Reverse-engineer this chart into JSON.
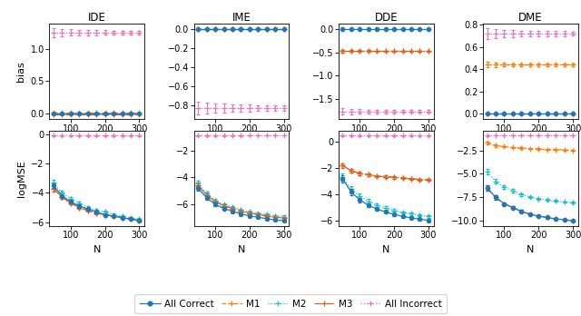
{
  "N_values": [
    50,
    75,
    100,
    125,
    150,
    175,
    200,
    225,
    250,
    275,
    300
  ],
  "colors": {
    "All Correct": "#1f77b4",
    "M1": "#ff7f0e",
    "M2": "#17becf",
    "M3": "#d6622b",
    "All Incorrect": "#e377c2"
  },
  "subplot_titles": [
    "IDE",
    "IME",
    "DDE",
    "DME"
  ],
  "row_labels": [
    "bias",
    "logMSE"
  ],
  "xlabel": "N",
  "bias": {
    "IDE": {
      "All Correct": {
        "mean": [
          0.0,
          0.0,
          0.0,
          0.0,
          0.0,
          0.0,
          0.0,
          0.0,
          0.0,
          0.0,
          0.0
        ],
        "err": [
          0.008,
          0.007,
          0.006,
          0.005,
          0.005,
          0.004,
          0.004,
          0.004,
          0.003,
          0.003,
          0.003
        ]
      },
      "M1": {
        "mean": [
          0.01,
          0.01,
          0.01,
          0.01,
          0.01,
          0.01,
          0.01,
          0.01,
          0.01,
          0.01,
          0.01
        ],
        "err": [
          0.01,
          0.008,
          0.007,
          0.006,
          0.006,
          0.005,
          0.005,
          0.005,
          0.004,
          0.004,
          0.004
        ]
      },
      "M2": {
        "mean": [
          0.005,
          0.005,
          0.005,
          0.005,
          0.005,
          0.005,
          0.005,
          0.005,
          0.005,
          0.005,
          0.005
        ],
        "err": [
          0.01,
          0.008,
          0.007,
          0.006,
          0.006,
          0.005,
          0.005,
          0.005,
          0.004,
          0.004,
          0.004
        ]
      },
      "M3": {
        "mean": [
          -0.01,
          -0.01,
          -0.01,
          -0.01,
          -0.01,
          -0.01,
          -0.01,
          -0.01,
          -0.01,
          -0.01,
          -0.01
        ],
        "err": [
          0.01,
          0.008,
          0.007,
          0.006,
          0.006,
          0.005,
          0.005,
          0.005,
          0.004,
          0.004,
          0.004
        ]
      },
      "All Incorrect": {
        "mean": [
          1.25,
          1.25,
          1.25,
          1.25,
          1.25,
          1.25,
          1.25,
          1.25,
          1.25,
          1.25,
          1.25
        ],
        "err": [
          0.07,
          0.055,
          0.048,
          0.043,
          0.039,
          0.037,
          0.035,
          0.033,
          0.032,
          0.03,
          0.029
        ]
      }
    },
    "IME": {
      "All Correct": {
        "mean": [
          0.0,
          0.0,
          0.0,
          0.0,
          0.0,
          0.0,
          0.0,
          0.0,
          0.0,
          0.0,
          0.0
        ],
        "err": [
          0.008,
          0.007,
          0.006,
          0.005,
          0.005,
          0.004,
          0.004,
          0.004,
          0.003,
          0.003,
          0.003
        ]
      },
      "M1": {
        "mean": [
          0.0,
          0.0,
          0.0,
          0.0,
          0.0,
          0.0,
          0.0,
          0.0,
          0.0,
          0.0,
          0.0
        ],
        "err": [
          0.008,
          0.007,
          0.006,
          0.005,
          0.005,
          0.004,
          0.004,
          0.004,
          0.003,
          0.003,
          0.003
        ]
      },
      "M2": {
        "mean": [
          0.0,
          0.0,
          0.0,
          0.0,
          0.0,
          0.0,
          0.0,
          0.0,
          0.0,
          0.0,
          0.0
        ],
        "err": [
          0.008,
          0.007,
          0.006,
          0.005,
          0.005,
          0.004,
          0.004,
          0.004,
          0.003,
          0.003,
          0.003
        ]
      },
      "M3": {
        "mean": [
          0.0,
          0.0,
          0.0,
          0.0,
          0.0,
          0.0,
          0.0,
          0.0,
          0.0,
          0.0,
          0.0
        ],
        "err": [
          0.008,
          0.007,
          0.006,
          0.005,
          0.005,
          0.004,
          0.004,
          0.004,
          0.003,
          0.003,
          0.003
        ]
      },
      "All Incorrect": {
        "mean": [
          -0.83,
          -0.83,
          -0.83,
          -0.83,
          -0.83,
          -0.83,
          -0.83,
          -0.83,
          -0.83,
          -0.83,
          -0.83
        ],
        "err": [
          0.07,
          0.055,
          0.048,
          0.043,
          0.039,
          0.037,
          0.035,
          0.033,
          0.032,
          0.03,
          0.029
        ]
      }
    },
    "DDE": {
      "All Correct": {
        "mean": [
          0.0,
          0.0,
          0.0,
          0.0,
          0.0,
          0.0,
          0.0,
          0.0,
          0.0,
          0.0,
          0.0
        ],
        "err": [
          0.025,
          0.02,
          0.017,
          0.015,
          0.014,
          0.013,
          0.012,
          0.011,
          0.011,
          0.01,
          0.01
        ]
      },
      "M1": {
        "mean": [
          -0.47,
          -0.47,
          -0.47,
          -0.47,
          -0.47,
          -0.47,
          -0.47,
          -0.47,
          -0.47,
          -0.47,
          -0.47
        ],
        "err": [
          0.025,
          0.02,
          0.017,
          0.015,
          0.014,
          0.013,
          0.012,
          0.011,
          0.011,
          0.01,
          0.01
        ]
      },
      "M2": {
        "mean": [
          0.0,
          0.0,
          0.0,
          0.0,
          0.0,
          0.0,
          0.0,
          0.0,
          0.0,
          0.0,
          0.0
        ],
        "err": [
          0.025,
          0.02,
          0.017,
          0.015,
          0.014,
          0.013,
          0.012,
          0.011,
          0.011,
          0.01,
          0.01
        ]
      },
      "M3": {
        "mean": [
          -0.47,
          -0.47,
          -0.47,
          -0.47,
          -0.47,
          -0.47,
          -0.47,
          -0.47,
          -0.47,
          -0.47,
          -0.47
        ],
        "err": [
          0.025,
          0.02,
          0.017,
          0.015,
          0.014,
          0.013,
          0.012,
          0.011,
          0.011,
          0.01,
          0.01
        ]
      },
      "All Incorrect": {
        "mean": [
          -1.77,
          -1.77,
          -1.77,
          -1.77,
          -1.77,
          -1.77,
          -1.77,
          -1.77,
          -1.77,
          -1.77,
          -1.77
        ],
        "err": [
          0.07,
          0.055,
          0.048,
          0.043,
          0.039,
          0.037,
          0.035,
          0.033,
          0.032,
          0.03,
          0.029
        ]
      }
    },
    "DME": {
      "All Correct": {
        "mean": [
          0.0,
          0.0,
          0.0,
          0.0,
          0.0,
          0.0,
          0.0,
          0.0,
          0.0,
          0.0,
          0.0
        ],
        "err": [
          0.008,
          0.007,
          0.006,
          0.005,
          0.005,
          0.004,
          0.004,
          0.004,
          0.003,
          0.003,
          0.003
        ]
      },
      "M1": {
        "mean": [
          0.44,
          0.44,
          0.44,
          0.44,
          0.44,
          0.44,
          0.44,
          0.44,
          0.44,
          0.44,
          0.44
        ],
        "err": [
          0.025,
          0.02,
          0.017,
          0.015,
          0.014,
          0.013,
          0.012,
          0.011,
          0.011,
          0.01,
          0.01
        ]
      },
      "M2": {
        "mean": [
          0.005,
          0.005,
          0.005,
          0.005,
          0.005,
          0.005,
          0.005,
          0.005,
          0.005,
          0.005,
          0.005
        ],
        "err": [
          0.008,
          0.007,
          0.006,
          0.005,
          0.005,
          0.004,
          0.004,
          0.004,
          0.003,
          0.003,
          0.003
        ]
      },
      "M3": {
        "mean": [
          0.005,
          0.005,
          0.005,
          0.005,
          0.005,
          0.005,
          0.005,
          0.005,
          0.005,
          0.005,
          0.005
        ],
        "err": [
          0.008,
          0.007,
          0.006,
          0.005,
          0.005,
          0.004,
          0.004,
          0.004,
          0.003,
          0.003,
          0.003
        ]
      },
      "All Incorrect": {
        "mean": [
          0.72,
          0.72,
          0.72,
          0.72,
          0.72,
          0.72,
          0.72,
          0.72,
          0.72,
          0.72,
          0.72
        ],
        "err": [
          0.05,
          0.04,
          0.035,
          0.031,
          0.028,
          0.026,
          0.025,
          0.023,
          0.022,
          0.021,
          0.02
        ]
      }
    }
  },
  "logMSE": {
    "IDE": {
      "All Correct": {
        "mean": [
          -3.5,
          -4.2,
          -4.6,
          -4.9,
          -5.1,
          -5.3,
          -5.5,
          -5.6,
          -5.7,
          -5.8,
          -5.9
        ],
        "err": [
          0.18,
          0.13,
          0.11,
          0.1,
          0.09,
          0.08,
          0.08,
          0.07,
          0.07,
          0.07,
          0.07
        ]
      },
      "M1": {
        "mean": [
          -3.7,
          -4.3,
          -4.7,
          -5.0,
          -5.2,
          -5.4,
          -5.5,
          -5.6,
          -5.7,
          -5.8,
          -5.9
        ],
        "err": [
          0.18,
          0.13,
          0.11,
          0.1,
          0.09,
          0.08,
          0.08,
          0.07,
          0.07,
          0.07,
          0.07
        ]
      },
      "M2": {
        "mean": [
          -3.3,
          -4.0,
          -4.4,
          -4.7,
          -5.0,
          -5.2,
          -5.3,
          -5.5,
          -5.6,
          -5.7,
          -5.8
        ],
        "err": [
          0.18,
          0.13,
          0.11,
          0.1,
          0.09,
          0.08,
          0.08,
          0.07,
          0.07,
          0.07,
          0.07
        ]
      },
      "M3": {
        "mean": [
          -3.7,
          -4.3,
          -4.7,
          -5.0,
          -5.2,
          -5.4,
          -5.5,
          -5.6,
          -5.7,
          -5.8,
          -5.9
        ],
        "err": [
          0.18,
          0.13,
          0.11,
          0.1,
          0.09,
          0.08,
          0.08,
          0.07,
          0.07,
          0.07,
          0.07
        ]
      },
      "All Incorrect": {
        "mean": [
          -0.05,
          -0.05,
          -0.05,
          -0.05,
          -0.05,
          -0.05,
          -0.05,
          -0.05,
          -0.05,
          -0.05,
          -0.05
        ],
        "err": [
          0.04,
          0.03,
          0.03,
          0.03,
          0.03,
          0.03,
          0.02,
          0.02,
          0.02,
          0.02,
          0.02
        ]
      }
    },
    "IME": {
      "All Correct": {
        "mean": [
          -4.8,
          -5.5,
          -6.0,
          -6.3,
          -6.5,
          -6.7,
          -6.85,
          -6.95,
          -7.05,
          -7.15,
          -7.2
        ],
        "err": [
          0.18,
          0.13,
          0.11,
          0.1,
          0.09,
          0.08,
          0.08,
          0.07,
          0.07,
          0.07,
          0.07
        ]
      },
      "M1": {
        "mean": [
          -4.6,
          -5.3,
          -5.8,
          -6.1,
          -6.3,
          -6.5,
          -6.65,
          -6.75,
          -6.85,
          -6.95,
          -7.0
        ],
        "err": [
          0.18,
          0.13,
          0.11,
          0.1,
          0.09,
          0.08,
          0.08,
          0.07,
          0.07,
          0.07,
          0.07
        ]
      },
      "M2": {
        "mean": [
          -4.4,
          -5.2,
          -5.7,
          -6.0,
          -6.2,
          -6.4,
          -6.55,
          -6.65,
          -6.75,
          -6.85,
          -6.9
        ],
        "err": [
          0.18,
          0.13,
          0.11,
          0.1,
          0.09,
          0.08,
          0.08,
          0.07,
          0.07,
          0.07,
          0.07
        ]
      },
      "M3": {
        "mean": [
          -4.6,
          -5.3,
          -5.8,
          -6.1,
          -6.3,
          -6.5,
          -6.65,
          -6.75,
          -6.85,
          -6.95,
          -7.0
        ],
        "err": [
          0.18,
          0.13,
          0.11,
          0.1,
          0.09,
          0.08,
          0.08,
          0.07,
          0.07,
          0.07,
          0.07
        ]
      },
      "All Incorrect": {
        "mean": [
          -0.9,
          -0.9,
          -0.9,
          -0.9,
          -0.9,
          -0.9,
          -0.9,
          -0.9,
          -0.9,
          -0.9,
          -0.9
        ],
        "err": [
          0.04,
          0.03,
          0.03,
          0.03,
          0.03,
          0.03,
          0.02,
          0.02,
          0.02,
          0.02,
          0.02
        ]
      }
    },
    "DDE": {
      "All Correct": {
        "mean": [
          -2.8,
          -3.8,
          -4.4,
          -4.8,
          -5.1,
          -5.3,
          -5.5,
          -5.65,
          -5.75,
          -5.85,
          -5.95
        ],
        "err": [
          0.28,
          0.22,
          0.18,
          0.16,
          0.14,
          0.12,
          0.11,
          0.1,
          0.1,
          0.09,
          0.09
        ]
      },
      "M1": {
        "mean": [
          -1.8,
          -2.2,
          -2.4,
          -2.5,
          -2.6,
          -2.65,
          -2.7,
          -2.75,
          -2.8,
          -2.85,
          -2.9
        ],
        "err": [
          0.18,
          0.13,
          0.11,
          0.1,
          0.09,
          0.08,
          0.08,
          0.07,
          0.07,
          0.07,
          0.07
        ]
      },
      "M2": {
        "mean": [
          -2.7,
          -3.6,
          -4.1,
          -4.5,
          -4.8,
          -5.0,
          -5.2,
          -5.35,
          -5.45,
          -5.55,
          -5.65
        ],
        "err": [
          0.28,
          0.22,
          0.18,
          0.16,
          0.14,
          0.12,
          0.11,
          0.1,
          0.1,
          0.09,
          0.09
        ]
      },
      "M3": {
        "mean": [
          -1.8,
          -2.2,
          -2.4,
          -2.5,
          -2.6,
          -2.65,
          -2.7,
          -2.75,
          -2.8,
          -2.85,
          -2.9
        ],
        "err": [
          0.18,
          0.13,
          0.11,
          0.1,
          0.09,
          0.08,
          0.08,
          0.07,
          0.07,
          0.07,
          0.07
        ]
      },
      "All Incorrect": {
        "mean": [
          0.45,
          0.45,
          0.45,
          0.45,
          0.45,
          0.45,
          0.45,
          0.45,
          0.45,
          0.45,
          0.45
        ],
        "err": [
          0.06,
          0.05,
          0.04,
          0.04,
          0.04,
          0.04,
          0.04,
          0.04,
          0.04,
          0.04,
          0.04
        ]
      }
    },
    "DME": {
      "All Correct": {
        "mean": [
          -6.5,
          -7.5,
          -8.2,
          -8.6,
          -9.0,
          -9.3,
          -9.5,
          -9.65,
          -9.8,
          -9.9,
          -10.0
        ],
        "err": [
          0.28,
          0.22,
          0.18,
          0.16,
          0.14,
          0.12,
          0.11,
          0.1,
          0.1,
          0.09,
          0.09
        ]
      },
      "M1": {
        "mean": [
          -1.7,
          -2.0,
          -2.1,
          -2.2,
          -2.25,
          -2.3,
          -2.35,
          -2.4,
          -2.4,
          -2.45,
          -2.5
        ],
        "err": [
          0.15,
          0.11,
          0.09,
          0.08,
          0.07,
          0.07,
          0.06,
          0.06,
          0.06,
          0.05,
          0.05
        ]
      },
      "M2": {
        "mean": [
          -4.8,
          -5.8,
          -6.4,
          -6.8,
          -7.2,
          -7.45,
          -7.65,
          -7.8,
          -7.9,
          -8.0,
          -8.05
        ],
        "err": [
          0.28,
          0.22,
          0.18,
          0.16,
          0.14,
          0.12,
          0.11,
          0.1,
          0.1,
          0.09,
          0.09
        ]
      },
      "M3": {
        "mean": [
          -6.5,
          -7.5,
          -8.2,
          -8.6,
          -9.0,
          -9.3,
          -9.5,
          -9.65,
          -9.8,
          -9.9,
          -10.0
        ],
        "err": [
          0.28,
          0.22,
          0.18,
          0.16,
          0.14,
          0.12,
          0.11,
          0.1,
          0.1,
          0.09,
          0.09
        ]
      },
      "All Incorrect": {
        "mean": [
          -0.9,
          -0.9,
          -0.9,
          -0.9,
          -0.9,
          -0.9,
          -0.9,
          -0.9,
          -0.9,
          -0.9,
          -0.9
        ],
        "err": [
          0.05,
          0.04,
          0.04,
          0.04,
          0.04,
          0.04,
          0.04,
          0.04,
          0.04,
          0.04,
          0.04
        ]
      }
    }
  }
}
